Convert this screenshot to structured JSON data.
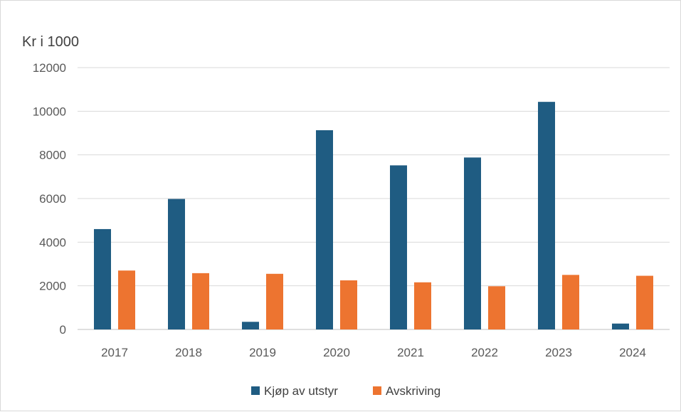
{
  "chart_data": {
    "type": "bar",
    "unit_label": "Kr i 1000",
    "categories": [
      "2017",
      "2018",
      "2019",
      "2020",
      "2021",
      "2022",
      "2023",
      "2024"
    ],
    "series": [
      {
        "name": "Kjøp av utstyr",
        "color": "#1f5c82",
        "values": [
          4600,
          5980,
          350,
          9130,
          7520,
          7880,
          10430,
          270
        ]
      },
      {
        "name": "Avskriving",
        "color": "#ed7430",
        "values": [
          2700,
          2580,
          2550,
          2250,
          2160,
          1980,
          2500,
          2460
        ]
      }
    ],
    "ylim": [
      0,
      12000
    ],
    "yticks": [
      "0",
      "2000",
      "4000",
      "6000",
      "8000",
      "10000",
      "12000"
    ],
    "grid": true,
    "legend_position": "bottom"
  }
}
